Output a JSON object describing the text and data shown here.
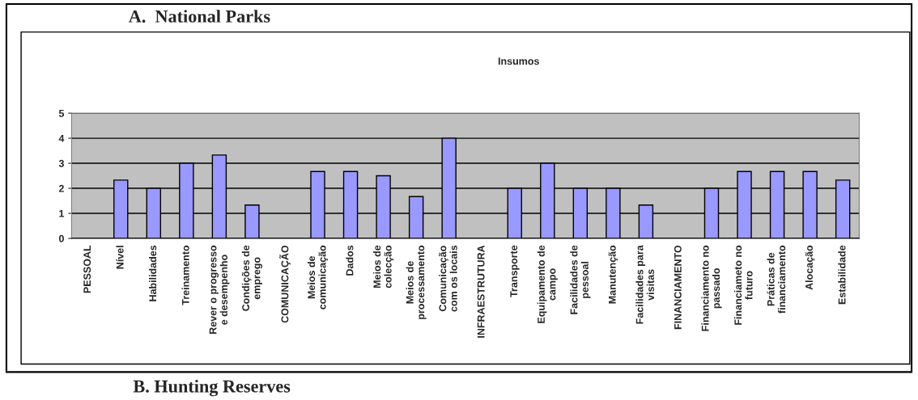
{
  "chart_data": {
    "type": "bar",
    "title": "A.  National Parks",
    "subtitle": "Insumos",
    "annotations": [
      "B. Hunting Reserves"
    ],
    "categories": [
      "PESSOAL",
      "Nível",
      "Habilidades",
      "Treinamento",
      "Rever o progresso\ne desempenho",
      "Condições de\nemprego",
      "COMUNICAÇÃO",
      "Meios de\ncomunicação",
      "Dados",
      "Meios de\ncolecção",
      "Meios de\nprocessamento",
      "Comunicação\ncom os locais",
      "INFRAESTRUTURA",
      "Transporte",
      "Equipamento de\ncampo",
      "Facilidades de\npessoal",
      "Manutenção",
      "Facilidades para\nvisitas",
      "FINANCIAMENTO",
      "Financiamento no\npassado",
      "Financiameto no\nfuturo",
      "Práticas de\nfinanciamento",
      "Alocação",
      "Estabilidade"
    ],
    "values": [
      null,
      2.33,
      2,
      3,
      3.33,
      1.33,
      null,
      2.67,
      2.67,
      2.5,
      1.67,
      4,
      null,
      2,
      3,
      2,
      2,
      1.33,
      null,
      2,
      2.67,
      2.67,
      2.67,
      2.33
    ],
    "color": "#9999ff",
    "ylim": [
      0,
      5
    ],
    "yticks": [
      0,
      1,
      2,
      3,
      4,
      5
    ],
    "grid": "y"
  }
}
